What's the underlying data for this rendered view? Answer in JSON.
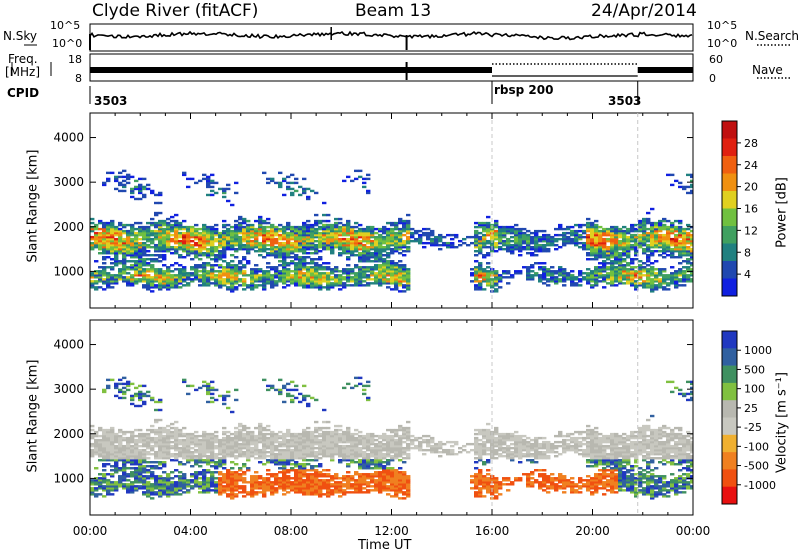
{
  "header": {
    "station": "Clyde River (fitACF)",
    "beam": "Beam 13",
    "date": "24/Apr/2014"
  },
  "strips": {
    "nsky_label": "N.Sky",
    "nsearch_label": "N.Search",
    "freq_label_top": "Freq.",
    "freq_label_bottom": "[MHz]",
    "nave_label": "Nave",
    "cpid_label": "CPID",
    "noise_ticks": [
      "10^5",
      "10^0"
    ],
    "freq_ticks_left": [
      "18",
      "8"
    ],
    "nave_ticks_right": [
      "60",
      "0"
    ],
    "cpid_segments": [
      {
        "label": "3503",
        "start_hour": 0,
        "end_hour": 16
      },
      {
        "label": "rbsp 200",
        "start_hour": 16,
        "end_hour": 21.8
      },
      {
        "label": "3503",
        "start_hour": 21.8,
        "end_hour": 24
      }
    ]
  },
  "colors": {
    "power": [
      "#1020e0",
      "#2048b0",
      "#208080",
      "#40a060",
      "#70c040",
      "#e0d020",
      "#f09010",
      "#f06010",
      "#e02010",
      "#c01010"
    ],
    "velocity": [
      "#e81010",
      "#f05010",
      "#f08020",
      "#f0b030",
      "#c8c8c0",
      "#b8b8b0",
      "#80c040",
      "#3f9060",
      "#3060a0",
      "#2038c0"
    ]
  },
  "chart_data": [
    {
      "type": "heatmap",
      "panel": "power",
      "ylabel": "Slant Range [km]",
      "xlabel": "Time UT",
      "xlim": [
        0,
        24
      ],
      "ylim": [
        180,
        4550
      ],
      "x_ticks": [
        "00:00",
        "04:00",
        "08:00",
        "12:00",
        "16:00",
        "20:00",
        "00:00"
      ],
      "y_ticks": [
        1000,
        2000,
        3000,
        4000
      ],
      "colorbar": {
        "label": "Power [dB]",
        "ticks": [
          "28",
          "24",
          "20",
          "16",
          "12",
          "8",
          "4"
        ]
      }
    },
    {
      "type": "heatmap",
      "panel": "velocity",
      "ylabel": "Slant Range [km]",
      "xlabel": "Time UT",
      "xlim": [
        0,
        24
      ],
      "ylim": [
        180,
        4550
      ],
      "x_ticks": [
        "00:00",
        "04:00",
        "08:00",
        "12:00",
        "16:00",
        "20:00",
        "00:00"
      ],
      "y_ticks": [
        1000,
        2000,
        3000,
        4000
      ],
      "colorbar": {
        "label": "Velocity [m s⁻¹]",
        "ticks": [
          "1000",
          "500",
          "100",
          "25",
          "-25",
          "-100",
          "-500",
          "-1000"
        ]
      }
    }
  ]
}
